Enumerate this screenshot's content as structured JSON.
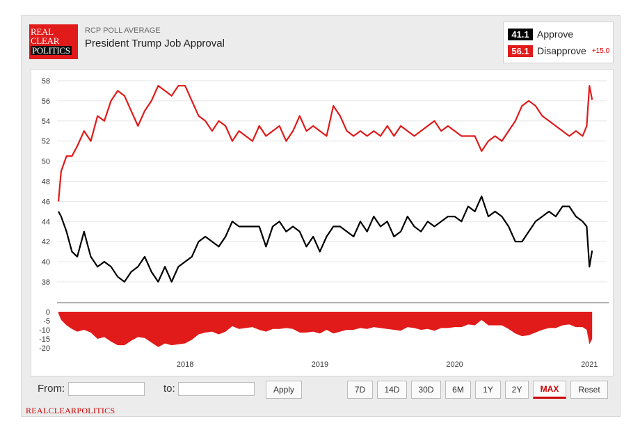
{
  "header": {
    "logo_line1": "REAL",
    "logo_line2": "CLEAR",
    "logo_line3": "POLITICS",
    "kicker": "RCP POLL AVERAGE",
    "title": "President Trump Job Approval"
  },
  "legend": {
    "approve_value": "41.1",
    "approve_label": "Approve",
    "approve_color": "#000000",
    "disapprove_value": "56.1",
    "disapprove_label": "Disapprove",
    "disapprove_color": "#e11a1a",
    "spread": "+15.0"
  },
  "controls": {
    "from_label": "From:",
    "to_label": "to:",
    "apply": "Apply",
    "ranges": [
      "7D",
      "14D",
      "30D",
      "6M",
      "1Y",
      "2Y",
      "MAX"
    ],
    "active_range": "MAX",
    "reset": "Reset"
  },
  "footer": "REALCLEARPOLITICS",
  "chart_data": {
    "type": "line",
    "x_unit": "year",
    "x_ticks": [
      "2018",
      "2019",
      "2020",
      "2021"
    ],
    "x_tick_values": [
      2018.0,
      2019.0,
      2020.0,
      2021.0
    ],
    "xlim": [
      2017.06,
      2021.05
    ],
    "ylim": [
      36.5,
      59
    ],
    "y_ticks": [
      38,
      40,
      42,
      44,
      46,
      48,
      50,
      52,
      54,
      56,
      58
    ],
    "grid": "horizontal",
    "series": [
      {
        "name": "Disapprove",
        "color": "#e11a1a",
        "x": [
          2017.06,
          2017.08,
          2017.12,
          2017.16,
          2017.2,
          2017.25,
          2017.3,
          2017.35,
          2017.4,
          2017.45,
          2017.5,
          2017.55,
          2017.6,
          2017.65,
          2017.7,
          2017.75,
          2017.8,
          2017.85,
          2017.9,
          2017.95,
          2018.0,
          2018.05,
          2018.1,
          2018.15,
          2018.2,
          2018.25,
          2018.3,
          2018.35,
          2018.4,
          2018.45,
          2018.5,
          2018.55,
          2018.6,
          2018.65,
          2018.7,
          2018.75,
          2018.8,
          2018.85,
          2018.9,
          2018.95,
          2019.0,
          2019.05,
          2019.1,
          2019.15,
          2019.2,
          2019.25,
          2019.3,
          2019.35,
          2019.4,
          2019.45,
          2019.5,
          2019.55,
          2019.6,
          2019.65,
          2019.7,
          2019.75,
          2019.8,
          2019.85,
          2019.9,
          2019.95,
          2020.0,
          2020.05,
          2020.1,
          2020.15,
          2020.2,
          2020.25,
          2020.3,
          2020.35,
          2020.4,
          2020.45,
          2020.5,
          2020.55,
          2020.6,
          2020.65,
          2020.7,
          2020.75,
          2020.8,
          2020.85,
          2020.9,
          2020.95,
          2020.98,
          2021.0,
          2021.02
        ],
        "values": [
          46.0,
          49.0,
          50.5,
          50.5,
          51.5,
          53.0,
          52.0,
          54.5,
          54.0,
          56.0,
          57.0,
          56.5,
          55.0,
          53.5,
          55.0,
          56.0,
          57.5,
          57.0,
          56.5,
          57.5,
          57.5,
          56.0,
          54.5,
          54.0,
          53.0,
          54.0,
          53.5,
          52.0,
          53.0,
          52.5,
          52.0,
          53.5,
          52.5,
          53.0,
          53.5,
          52.0,
          53.0,
          54.5,
          53.0,
          53.5,
          53.0,
          52.5,
          55.5,
          54.5,
          53.0,
          52.5,
          53.0,
          52.5,
          53.0,
          52.5,
          53.5,
          52.5,
          53.5,
          53.0,
          52.5,
          53.0,
          53.5,
          54.0,
          53.0,
          53.5,
          53.0,
          52.5,
          52.5,
          52.5,
          51.0,
          52.0,
          52.5,
          52.0,
          53.0,
          54.0,
          55.5,
          56.0,
          55.5,
          54.5,
          54.0,
          53.5,
          53.0,
          52.5,
          53.0,
          52.5,
          53.5,
          57.5,
          56.1
        ]
      },
      {
        "name": "Approve",
        "color": "#000000",
        "x": [
          2017.06,
          2017.08,
          2017.12,
          2017.16,
          2017.2,
          2017.25,
          2017.3,
          2017.35,
          2017.4,
          2017.45,
          2017.5,
          2017.55,
          2017.6,
          2017.65,
          2017.7,
          2017.75,
          2017.8,
          2017.85,
          2017.9,
          2017.95,
          2018.0,
          2018.05,
          2018.1,
          2018.15,
          2018.2,
          2018.25,
          2018.3,
          2018.35,
          2018.4,
          2018.45,
          2018.5,
          2018.55,
          2018.6,
          2018.65,
          2018.7,
          2018.75,
          2018.8,
          2018.85,
          2018.9,
          2018.95,
          2019.0,
          2019.05,
          2019.1,
          2019.15,
          2019.2,
          2019.25,
          2019.3,
          2019.35,
          2019.4,
          2019.45,
          2019.5,
          2019.55,
          2019.6,
          2019.65,
          2019.7,
          2019.75,
          2019.8,
          2019.85,
          2019.9,
          2019.95,
          2020.0,
          2020.05,
          2020.1,
          2020.15,
          2020.2,
          2020.25,
          2020.3,
          2020.35,
          2020.4,
          2020.45,
          2020.5,
          2020.55,
          2020.6,
          2020.65,
          2020.7,
          2020.75,
          2020.8,
          2020.85,
          2020.9,
          2020.95,
          2020.98,
          2021.0,
          2021.02
        ],
        "values": [
          45.0,
          44.5,
          43.0,
          41.0,
          40.5,
          43.0,
          40.5,
          39.5,
          40.0,
          39.5,
          38.5,
          38.0,
          39.0,
          39.5,
          40.5,
          39.0,
          38.0,
          39.5,
          38.0,
          39.5,
          40.0,
          40.5,
          42.0,
          42.5,
          42.0,
          41.5,
          42.5,
          44.0,
          43.5,
          43.5,
          43.5,
          43.5,
          41.5,
          43.5,
          44.0,
          43.0,
          43.5,
          43.0,
          41.5,
          42.5,
          41.0,
          42.5,
          43.5,
          43.5,
          43.0,
          42.5,
          44.0,
          43.0,
          44.5,
          43.5,
          44.0,
          42.5,
          43.0,
          44.5,
          43.5,
          43.0,
          44.0,
          43.5,
          44.0,
          44.5,
          44.5,
          44.0,
          45.5,
          45.0,
          46.5,
          44.5,
          45.0,
          44.5,
          43.5,
          42.0,
          42.0,
          43.0,
          44.0,
          44.5,
          45.0,
          44.5,
          45.5,
          45.5,
          44.5,
          44.0,
          43.5,
          39.5,
          41.1
        ]
      }
    ],
    "spread": {
      "ylim": [
        -22,
        0
      ],
      "y_ticks": [
        0,
        -5,
        -10,
        -15,
        -20
      ],
      "y_tick_labels": [
        "0",
        "-5",
        "-10",
        "-15",
        "-20"
      ]
    }
  }
}
